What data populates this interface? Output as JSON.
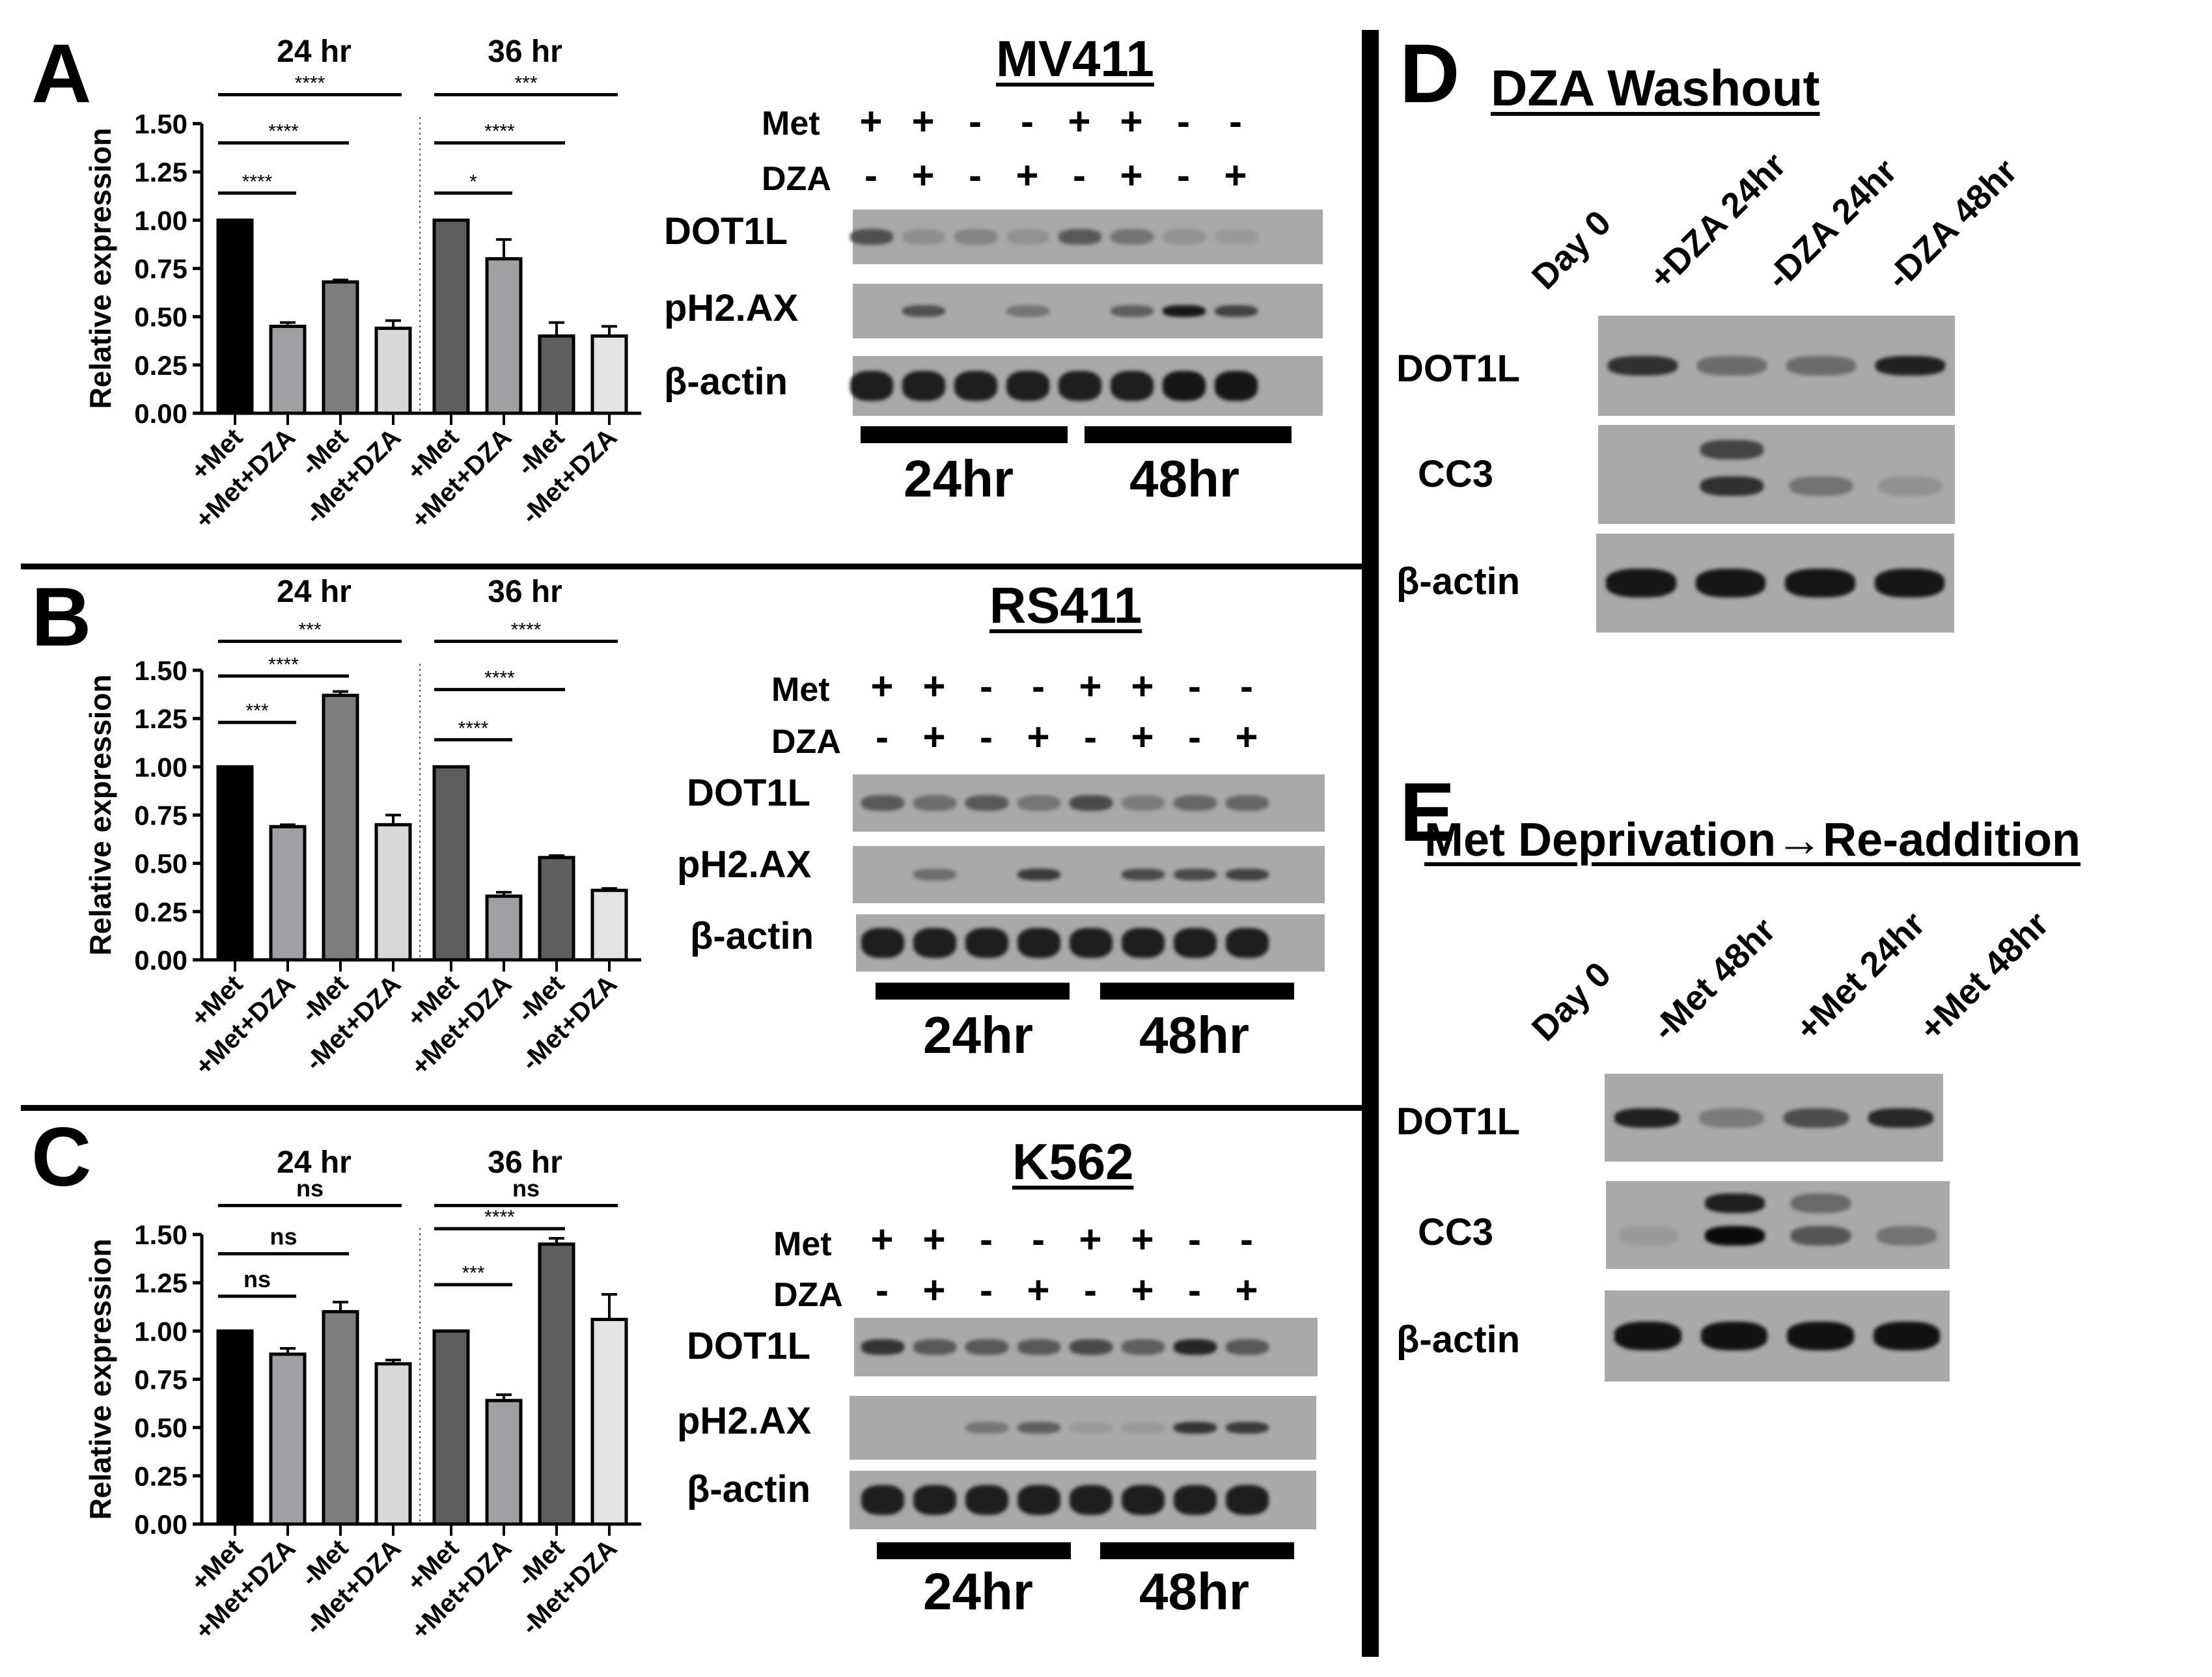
{
  "figure": {
    "panels": [
      "A",
      "B",
      "C",
      "D",
      "E"
    ]
  },
  "chart_data": [
    {
      "panel": "A",
      "type": "bar",
      "ylabel": "Relative expression",
      "ylim": [
        0,
        1.5
      ],
      "yticks": [
        "0.00",
        "0.25",
        "0.50",
        "0.75",
        "1.00",
        "1.25",
        "1.50"
      ],
      "group_titles": [
        "24 hr",
        "36 hr"
      ],
      "categories": [
        "+Met",
        "+Met+DZA",
        "-Met",
        "-Met+DZA",
        "+Met",
        "+Met+DZA",
        "-Met",
        "-Met+DZA"
      ],
      "values": [
        1.0,
        0.45,
        0.68,
        0.44,
        1.0,
        0.8,
        0.4,
        0.4
      ],
      "errors": [
        0.0,
        0.02,
        0.01,
        0.04,
        0.0,
        0.1,
        0.07,
        0.05
      ],
      "significance": [
        {
          "from": 0,
          "to": 1,
          "label": "****",
          "level": 1.14
        },
        {
          "from": 0,
          "to": 2,
          "label": "****",
          "level": 1.4
        },
        {
          "from": 0,
          "to": 3,
          "label": "****",
          "level": 1.65
        },
        {
          "from": 4,
          "to": 5,
          "label": "*",
          "level": 1.14
        },
        {
          "from": 4,
          "to": 6,
          "label": "****",
          "level": 1.4
        },
        {
          "from": 4,
          "to": 7,
          "label": "***",
          "level": 1.65
        }
      ]
    },
    {
      "panel": "B",
      "type": "bar",
      "ylabel": "Relative expression",
      "ylim": [
        0,
        1.5
      ],
      "yticks": [
        "0.00",
        "0.25",
        "0.50",
        "0.75",
        "1.00",
        "1.25",
        "1.50"
      ],
      "group_titles": [
        "24 hr",
        "36 hr"
      ],
      "categories": [
        "+Met",
        "+Met+DZA",
        "-Met",
        "-Met+DZA",
        "+Met",
        "+Met+DZA",
        "-Met",
        "-Met+DZA"
      ],
      "values": [
        1.0,
        0.69,
        1.37,
        0.7,
        1.0,
        0.33,
        0.53,
        0.36
      ],
      "errors": [
        0.0,
        0.01,
        0.02,
        0.05,
        0.0,
        0.02,
        0.01,
        0.01
      ],
      "significance": [
        {
          "from": 0,
          "to": 1,
          "label": "***",
          "level": 1.23
        },
        {
          "from": 0,
          "to": 2,
          "label": "****",
          "level": 1.47
        },
        {
          "from": 0,
          "to": 3,
          "label": "***",
          "level": 1.65
        },
        {
          "from": 4,
          "to": 5,
          "label": "****",
          "level": 1.14
        },
        {
          "from": 4,
          "to": 6,
          "label": "****",
          "level": 1.4
        },
        {
          "from": 4,
          "to": 7,
          "label": "****",
          "level": 1.65
        }
      ]
    },
    {
      "panel": "C",
      "type": "bar",
      "ylabel": "Relative expression",
      "ylim": [
        0,
        1.5
      ],
      "yticks": [
        "0.00",
        "0.25",
        "0.50",
        "0.75",
        "1.00",
        "1.25",
        "1.50"
      ],
      "group_titles": [
        "24 hr",
        "36 hr"
      ],
      "categories": [
        "+Met",
        "+Met+DZA",
        "-Met",
        "-Met+DZA",
        "+Met",
        "+Met+DZA",
        "-Met",
        "-Met+DZA"
      ],
      "values": [
        1.0,
        0.88,
        1.1,
        0.83,
        1.0,
        0.64,
        1.45,
        1.06
      ],
      "errors": [
        0.0,
        0.03,
        0.05,
        0.02,
        0.0,
        0.03,
        0.03,
        0.13
      ],
      "significance": [
        {
          "from": 0,
          "to": 1,
          "label": "ns",
          "level": 1.18
        },
        {
          "from": 0,
          "to": 2,
          "label": "ns",
          "level": 1.4
        },
        {
          "from": 0,
          "to": 3,
          "label": "ns",
          "level": 1.65
        },
        {
          "from": 4,
          "to": 5,
          "label": "***",
          "level": 1.24
        },
        {
          "from": 4,
          "to": 6,
          "label": "****",
          "level": 1.53
        },
        {
          "from": 4,
          "to": 7,
          "label": "ns",
          "level": 1.65
        }
      ]
    }
  ],
  "bar_colors": [
    "#000000",
    "#a09fa4",
    "#7e7e7e",
    "#d8d8d8",
    "#5e5e5e",
    "#a09fa4",
    "#5e5e5e",
    "#e4e4e4"
  ],
  "blots": {
    "A": {
      "title": "MV411",
      "met_label": "Met",
      "dza_label": "DZA",
      "met": [
        "+",
        "+",
        "-",
        "-",
        "+",
        "+",
        "-",
        "-"
      ],
      "dza": [
        "-",
        "+",
        "-",
        "+",
        "-",
        "+",
        "-",
        "+"
      ],
      "rows": [
        "DOT1L",
        "pH2.AX",
        "β-actin"
      ],
      "time_labels": [
        "24hr",
        "48hr"
      ]
    },
    "B": {
      "title": "RS411",
      "met_label": "Met",
      "dza_label": "DZA",
      "met": [
        "+",
        "+",
        "-",
        "-",
        "+",
        "+",
        "-",
        "-"
      ],
      "dza": [
        "-",
        "+",
        "-",
        "+",
        "-",
        "+",
        "-",
        "+"
      ],
      "rows": [
        "DOT1L",
        "pH2.AX",
        "β-actin"
      ],
      "time_labels": [
        "24hr",
        "48hr"
      ]
    },
    "C": {
      "title": "K562",
      "met_label": "Met",
      "dza_label": "DZA",
      "met": [
        "+",
        "+",
        "-",
        "-",
        "+",
        "+",
        "-",
        "-"
      ],
      "dza": [
        "-",
        "+",
        "-",
        "+",
        "-",
        "+",
        "-",
        "+"
      ],
      "rows": [
        "DOT1L",
        "pH2.AX",
        "β-actin"
      ],
      "time_labels": [
        "24hr",
        "48hr"
      ]
    },
    "D": {
      "title": "DZA Washout",
      "lanes": [
        "Day 0",
        "+DZA 24hr",
        "-DZA 24hr",
        "-DZA 48hr"
      ],
      "rows": [
        "DOT1L",
        "CC3",
        "β-actin"
      ]
    },
    "E": {
      "title": "Met Deprivation→Re-addition",
      "lanes": [
        "Day 0",
        "-Met 48hr",
        "+Met 24hr",
        "+Met 48hr"
      ],
      "rows": [
        "DOT1L",
        "CC3",
        "β-actin"
      ]
    }
  }
}
